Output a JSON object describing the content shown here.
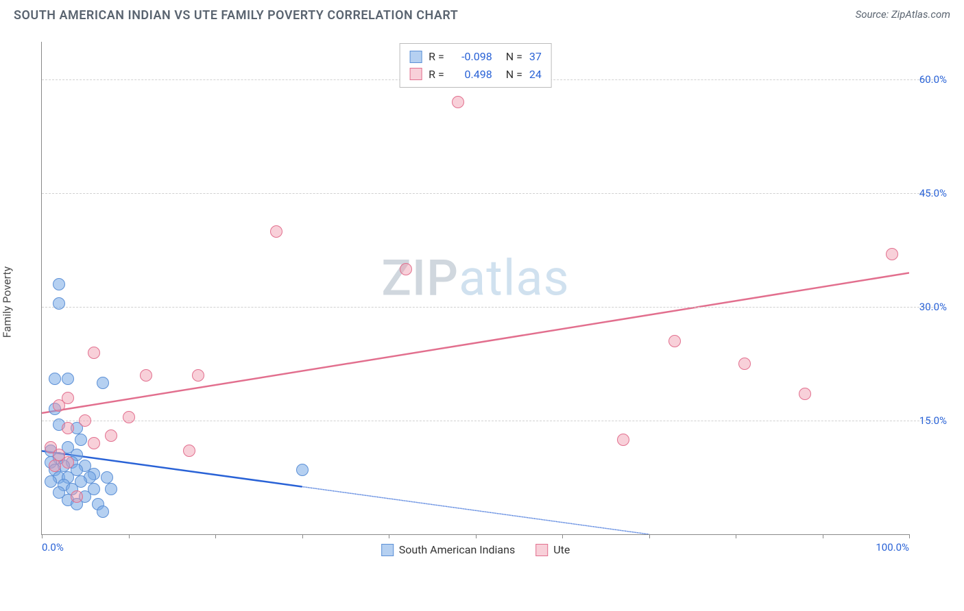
{
  "header": {
    "title": "SOUTH AMERICAN INDIAN VS UTE FAMILY POVERTY CORRELATION CHART",
    "source_prefix": "Source: ",
    "source_name": "ZipAtlas.com"
  },
  "chart": {
    "ylabel": "Family Poverty",
    "xlim": [
      0,
      100
    ],
    "ylim": [
      0,
      65
    ],
    "y_ticks": [
      15.0,
      30.0,
      45.0,
      60.0
    ],
    "y_tick_labels": [
      "15.0%",
      "30.0%",
      "45.0%",
      "60.0%"
    ],
    "x_ticks": [
      0,
      10,
      20,
      30,
      40,
      50,
      60,
      70,
      80,
      90,
      100
    ],
    "x_tick_labels_shown": {
      "0": "0.0%",
      "100": "100.0%"
    },
    "grid_color": "#d0d0d0",
    "axis_color": "#888888",
    "background_color": "#ffffff",
    "tick_label_color": "#2962d6",
    "ylabel_color": "#4a4a4a",
    "marker_radius": 9,
    "marker_border_width": 1.5,
    "watermark": {
      "zip": "ZIP",
      "atlas": "atlas"
    }
  },
  "series": [
    {
      "name": "South American Indians",
      "fill_color": "rgba(120,170,230,0.55)",
      "border_color": "#5b8fd6",
      "R": "-0.098",
      "N": "37",
      "trend": {
        "x1": 0,
        "y1": 11.0,
        "x2": 70,
        "y2": 0.0,
        "color": "#2962d6",
        "width": 2.5,
        "dash_after_x": 30
      },
      "points": [
        [
          2,
          33
        ],
        [
          2,
          30.5
        ],
        [
          1.5,
          20.5
        ],
        [
          3,
          20.5
        ],
        [
          7,
          20
        ],
        [
          1.5,
          16.5
        ],
        [
          2,
          14.5
        ],
        [
          4,
          14
        ],
        [
          4.5,
          12.5
        ],
        [
          3,
          11.5
        ],
        [
          1,
          11
        ],
        [
          4,
          10.5
        ],
        [
          2,
          10
        ],
        [
          1,
          9.5
        ],
        [
          3.5,
          9.5
        ],
        [
          2.5,
          9
        ],
        [
          5,
          9
        ],
        [
          1.5,
          8.5
        ],
        [
          4,
          8.5
        ],
        [
          6,
          8
        ],
        [
          2,
          7.5
        ],
        [
          3,
          7.5
        ],
        [
          5.5,
          7.5
        ],
        [
          7.5,
          7.5
        ],
        [
          1,
          7
        ],
        [
          4.5,
          7
        ],
        [
          2.5,
          6.5
        ],
        [
          3.5,
          6
        ],
        [
          6,
          6
        ],
        [
          8,
          6
        ],
        [
          2,
          5.5
        ],
        [
          5,
          5
        ],
        [
          3,
          4.5
        ],
        [
          4,
          4
        ],
        [
          6.5,
          4
        ],
        [
          7,
          3
        ],
        [
          30,
          8.5
        ]
      ]
    },
    {
      "name": "Ute",
      "fill_color": "rgba(240,150,170,0.45)",
      "border_color": "#e26f8e",
      "R": "0.498",
      "N": "24",
      "trend": {
        "x1": 0,
        "y1": 16.0,
        "x2": 100,
        "y2": 34.5,
        "color": "#e26f8e",
        "width": 2.5
      },
      "points": [
        [
          48,
          57
        ],
        [
          27,
          40
        ],
        [
          42,
          35
        ],
        [
          98,
          37
        ],
        [
          73,
          25.5
        ],
        [
          81,
          22.5
        ],
        [
          88,
          18.5
        ],
        [
          67,
          12.5
        ],
        [
          6,
          24
        ],
        [
          12,
          21
        ],
        [
          18,
          21
        ],
        [
          10,
          15.5
        ],
        [
          3,
          18
        ],
        [
          2,
          17
        ],
        [
          5,
          15
        ],
        [
          3,
          14
        ],
        [
          8,
          13
        ],
        [
          6,
          12
        ],
        [
          17,
          11
        ],
        [
          1,
          11.5
        ],
        [
          2,
          10.5
        ],
        [
          3,
          9.5
        ],
        [
          1.5,
          9
        ],
        [
          4,
          5
        ]
      ]
    }
  ],
  "legend_top": {
    "r_label": "R =",
    "n_label": "N ="
  },
  "legend_bottom": {
    "items": [
      "South American Indians",
      "Ute"
    ]
  }
}
